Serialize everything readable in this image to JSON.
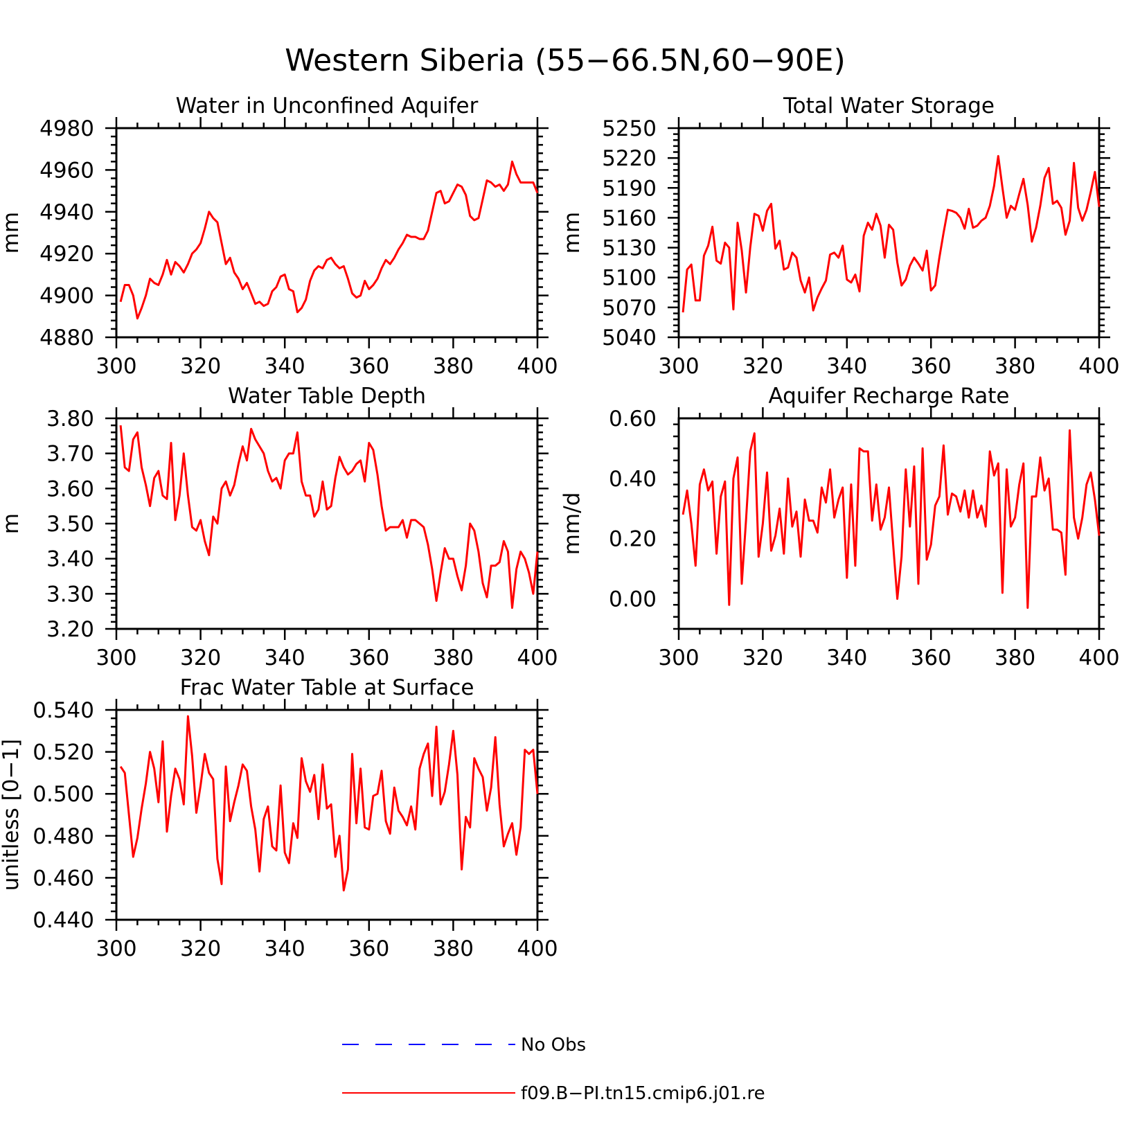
{
  "title": "Western Siberia (55−66.5N,60−90E)",
  "colors": {
    "model": "#ff0000",
    "obs": "#0000ff"
  },
  "legend": {
    "placement": "bottom-center",
    "items": [
      {
        "label": "No Obs",
        "color": "#0000ff",
        "style": "dashed"
      },
      {
        "label": "f09.B−PI.tn15.cmip6.j01.re",
        "color": "#ff0000",
        "style": "solid"
      }
    ]
  },
  "chart_data": [
    {
      "type": "line",
      "title": "Water in Unconfined Aquifer",
      "ylabel": "mm",
      "xlim": [
        300,
        400
      ],
      "ylim": [
        4880,
        4980
      ],
      "xticks": [
        "300",
        "320",
        "340",
        "360",
        "380",
        "400"
      ],
      "yticks": [
        "4880",
        "4900",
        "4920",
        "4940",
        "4960",
        "4980"
      ],
      "x_start": 301,
      "series": [
        {
          "values": [
            4897,
            4905,
            4905,
            4900,
            4889,
            4894,
            4900,
            4908,
            4906,
            4905,
            4910,
            4917,
            4910,
            4916,
            4914,
            4911,
            4915,
            4920,
            4922,
            4925,
            4932,
            4940,
            4937,
            4935,
            4925,
            4915,
            4918,
            4911,
            4908,
            4903,
            4906,
            4901,
            4896,
            4897,
            4895,
            4896,
            4902,
            4904,
            4909,
            4910,
            4903,
            4902,
            4892,
            4894,
            4898,
            4907,
            4912,
            4914,
            4913,
            4917,
            4918,
            4915,
            4913,
            4914,
            4908,
            4901,
            4899,
            4900,
            4907,
            4903,
            4905,
            4908,
            4913,
            4917,
            4915,
            4918,
            4922,
            4925,
            4929,
            4928,
            4928,
            4927,
            4927,
            4931,
            4940,
            4949,
            4950,
            4944,
            4945,
            4949,
            4953,
            4952,
            4948,
            4938,
            4936,
            4937,
            4946,
            4955,
            4954,
            4952,
            4953,
            4950,
            4953,
            4964,
            4958,
            4954,
            4954,
            4954,
            4954,
            4949
          ]
        }
      ]
    },
    {
      "type": "line",
      "title": "Total Water Storage",
      "ylabel": "mm",
      "xlim": [
        300,
        400
      ],
      "ylim": [
        5040,
        5250
      ],
      "xticks": [
        "300",
        "320",
        "340",
        "360",
        "380",
        "400"
      ],
      "yticks": [
        "5040",
        "5070",
        "5100",
        "5130",
        "5160",
        "5190",
        "5220",
        "5250"
      ],
      "x_start": 301,
      "series": [
        {
          "values": [
            5065,
            5108,
            5113,
            5077,
            5077,
            5122,
            5132,
            5151,
            5117,
            5114,
            5135,
            5130,
            5068,
            5155,
            5127,
            5085,
            5130,
            5164,
            5162,
            5147,
            5167,
            5174,
            5129,
            5137,
            5108,
            5110,
            5125,
            5120,
            5097,
            5085,
            5100,
            5067,
            5080,
            5089,
            5097,
            5123,
            5125,
            5120,
            5132,
            5098,
            5095,
            5103,
            5086,
            5142,
            5155,
            5148,
            5164,
            5152,
            5120,
            5153,
            5148,
            5115,
            5092,
            5098,
            5112,
            5120,
            5114,
            5107,
            5127,
            5087,
            5092,
            5120,
            5145,
            5168,
            5167,
            5165,
            5160,
            5149,
            5169,
            5150,
            5152,
            5157,
            5160,
            5172,
            5192,
            5222,
            5190,
            5160,
            5172,
            5168,
            5184,
            5199,
            5173,
            5136,
            5150,
            5172,
            5200,
            5210,
            5174,
            5177,
            5170,
            5143,
            5157,
            5215,
            5170,
            5157,
            5168,
            5186,
            5206,
            5171
          ]
        }
      ]
    },
    {
      "type": "line",
      "title": "Water Table Depth",
      "ylabel": "m",
      "xlim": [
        300,
        400
      ],
      "ylim": [
        3.2,
        3.8
      ],
      "xticks": [
        "300",
        "320",
        "340",
        "360",
        "380",
        "400"
      ],
      "yticks": [
        "3.20",
        "3.30",
        "3.40",
        "3.50",
        "3.60",
        "3.70",
        "3.80"
      ],
      "x_start": 301,
      "series": [
        {
          "values": [
            3.78,
            3.66,
            3.65,
            3.74,
            3.76,
            3.66,
            3.61,
            3.55,
            3.63,
            3.65,
            3.58,
            3.57,
            3.73,
            3.51,
            3.58,
            3.7,
            3.58,
            3.49,
            3.48,
            3.51,
            3.45,
            3.41,
            3.52,
            3.5,
            3.6,
            3.62,
            3.58,
            3.61,
            3.67,
            3.72,
            3.68,
            3.77,
            3.74,
            3.72,
            3.7,
            3.65,
            3.62,
            3.63,
            3.6,
            3.68,
            3.7,
            3.7,
            3.76,
            3.62,
            3.58,
            3.58,
            3.52,
            3.54,
            3.62,
            3.54,
            3.55,
            3.63,
            3.69,
            3.66,
            3.64,
            3.65,
            3.67,
            3.68,
            3.62,
            3.73,
            3.71,
            3.64,
            3.55,
            3.48,
            3.49,
            3.49,
            3.49,
            3.51,
            3.46,
            3.51,
            3.51,
            3.5,
            3.49,
            3.44,
            3.37,
            3.28,
            3.36,
            3.43,
            3.4,
            3.4,
            3.35,
            3.31,
            3.38,
            3.5,
            3.48,
            3.42,
            3.33,
            3.29,
            3.38,
            3.38,
            3.39,
            3.45,
            3.42,
            3.26,
            3.37,
            3.42,
            3.4,
            3.36,
            3.3,
            3.42
          ]
        }
      ]
    },
    {
      "type": "line",
      "title": "Aquifer Recharge Rate",
      "ylabel": "mm/d",
      "xlim": [
        300,
        400
      ],
      "ylim": [
        -0.1,
        0.6
      ],
      "xticks": [
        "300",
        "320",
        "340",
        "360",
        "380",
        "400"
      ],
      "yticks": [
        "0.00",
        "0.20",
        "0.40",
        "0.60"
      ],
      "x_start": 301,
      "series": [
        {
          "values": [
            0.28,
            0.36,
            0.25,
            0.11,
            0.38,
            0.43,
            0.36,
            0.39,
            0.15,
            0.34,
            0.39,
            -0.02,
            0.4,
            0.47,
            0.05,
            0.26,
            0.49,
            0.55,
            0.14,
            0.25,
            0.42,
            0.16,
            0.21,
            0.3,
            0.15,
            0.4,
            0.24,
            0.29,
            0.14,
            0.33,
            0.26,
            0.26,
            0.22,
            0.37,
            0.32,
            0.43,
            0.27,
            0.33,
            0.37,
            0.07,
            0.38,
            0.11,
            0.5,
            0.49,
            0.49,
            0.26,
            0.38,
            0.23,
            0.27,
            0.37,
            0.18,
            0.0,
            0.14,
            0.43,
            0.24,
            0.44,
            0.05,
            0.5,
            0.13,
            0.18,
            0.31,
            0.34,
            0.51,
            0.28,
            0.35,
            0.34,
            0.29,
            0.36,
            0.27,
            0.36,
            0.27,
            0.31,
            0.24,
            0.49,
            0.41,
            0.45,
            0.02,
            0.43,
            0.24,
            0.27,
            0.38,
            0.45,
            -0.03,
            0.34,
            0.34,
            0.47,
            0.36,
            0.4,
            0.23,
            0.23,
            0.22,
            0.08,
            0.56,
            0.27,
            0.2,
            0.27,
            0.38,
            0.42,
            0.33,
            0.21
          ]
        }
      ]
    },
    {
      "type": "line",
      "title": "Frac Water Table at Surface",
      "ylabel": "unitless [0−1]",
      "xlim": [
        300,
        400
      ],
      "ylim": [
        0.44,
        0.54
      ],
      "xticks": [
        "300",
        "320",
        "340",
        "360",
        "380",
        "400"
      ],
      "yticks": [
        "0.440",
        "0.460",
        "0.480",
        "0.500",
        "0.520",
        "0.540"
      ],
      "x_start": 301,
      "series": [
        {
          "values": [
            0.513,
            0.51,
            0.49,
            0.47,
            0.479,
            0.493,
            0.505,
            0.52,
            0.512,
            0.496,
            0.525,
            0.482,
            0.499,
            0.512,
            0.507,
            0.495,
            0.537,
            0.518,
            0.491,
            0.504,
            0.519,
            0.51,
            0.507,
            0.469,
            0.457,
            0.513,
            0.487,
            0.496,
            0.504,
            0.514,
            0.511,
            0.494,
            0.483,
            0.463,
            0.488,
            0.494,
            0.475,
            0.473,
            0.504,
            0.472,
            0.467,
            0.486,
            0.479,
            0.517,
            0.506,
            0.501,
            0.509,
            0.488,
            0.514,
            0.493,
            0.495,
            0.47,
            0.48,
            0.454,
            0.464,
            0.519,
            0.486,
            0.512,
            0.484,
            0.483,
            0.499,
            0.5,
            0.511,
            0.487,
            0.481,
            0.503,
            0.492,
            0.489,
            0.485,
            0.494,
            0.483,
            0.512,
            0.519,
            0.524,
            0.499,
            0.532,
            0.495,
            0.501,
            0.514,
            0.53,
            0.509,
            0.464,
            0.489,
            0.484,
            0.517,
            0.512,
            0.508,
            0.492,
            0.503,
            0.527,
            0.495,
            0.475,
            0.481,
            0.486,
            0.471,
            0.484,
            0.521,
            0.519,
            0.521,
            0.5
          ]
        }
      ]
    }
  ]
}
